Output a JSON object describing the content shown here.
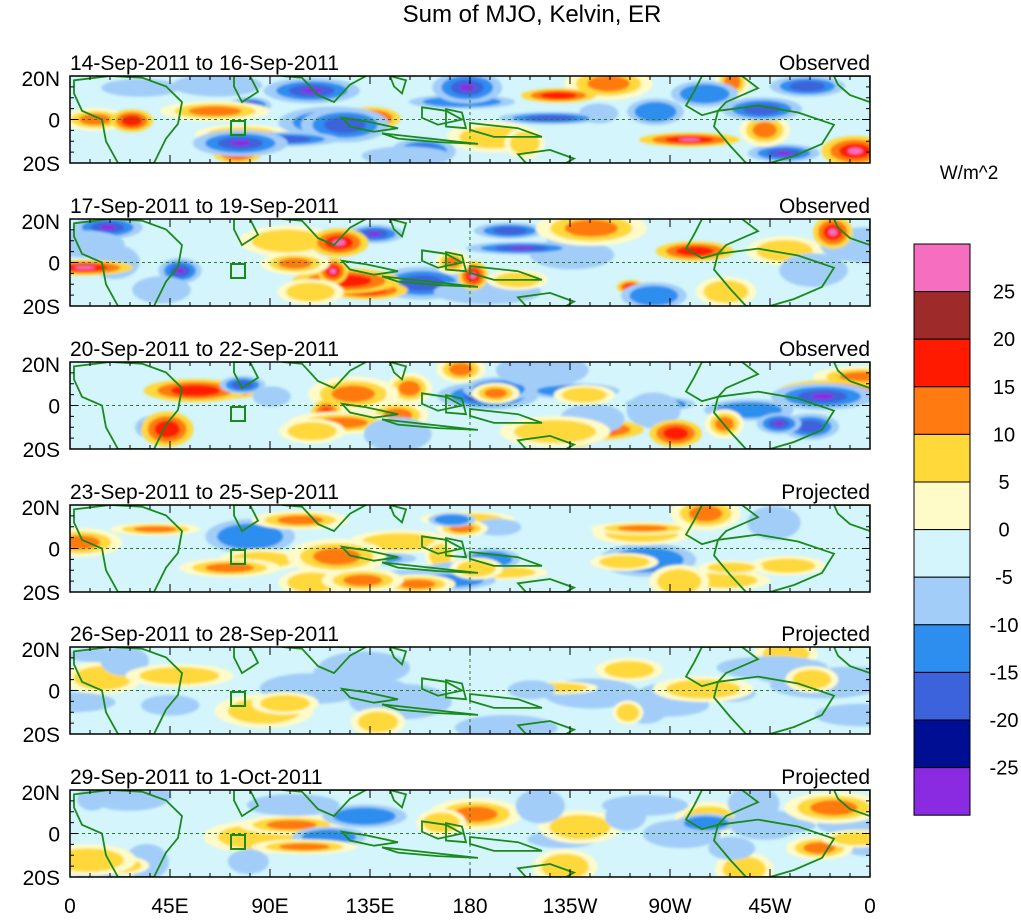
{
  "title": "Sum of MJO, Kelvin, ER",
  "units": "W/m^2",
  "lat_labels": [
    "20N",
    "0",
    "20S"
  ],
  "lon_labels": [
    "0",
    "45E",
    "90E",
    "135E",
    "180",
    "135W",
    "90W",
    "45W",
    "0"
  ],
  "panels": [
    {
      "date_range": "14-Sep-2011 to 16-Sep-2011",
      "status": "Observed"
    },
    {
      "date_range": "17-Sep-2011 to 19-Sep-2011",
      "status": "Observed"
    },
    {
      "date_range": "20-Sep-2011 to 22-Sep-2011",
      "status": "Observed"
    },
    {
      "date_range": "23-Sep-2011 to 25-Sep-2011",
      "status": "Projected"
    },
    {
      "date_range": "26-Sep-2011 to 28-Sep-2011",
      "status": "Projected"
    },
    {
      "date_range": "29-Sep-2011 to 1-Oct-2011",
      "status": "Projected"
    }
  ],
  "colorbar": {
    "labels": [
      "25",
      "20",
      "15",
      "10",
      "5",
      "0",
      "-5",
      "-10",
      "-15",
      "-20",
      "-25"
    ],
    "colors": [
      "#f66ec0",
      "#9e2a2a",
      "#ff1a00",
      "#ff7a10",
      "#ffd83a",
      "#fffbc8",
      "#d3f5fb",
      "#a2cdf8",
      "#2e8ef0",
      "#3c62dc",
      "#000e94",
      "#8a2be2"
    ]
  },
  "colors": {
    "coastline": "#1a8a1a",
    "equator_line": "#2a7a2a"
  }
}
